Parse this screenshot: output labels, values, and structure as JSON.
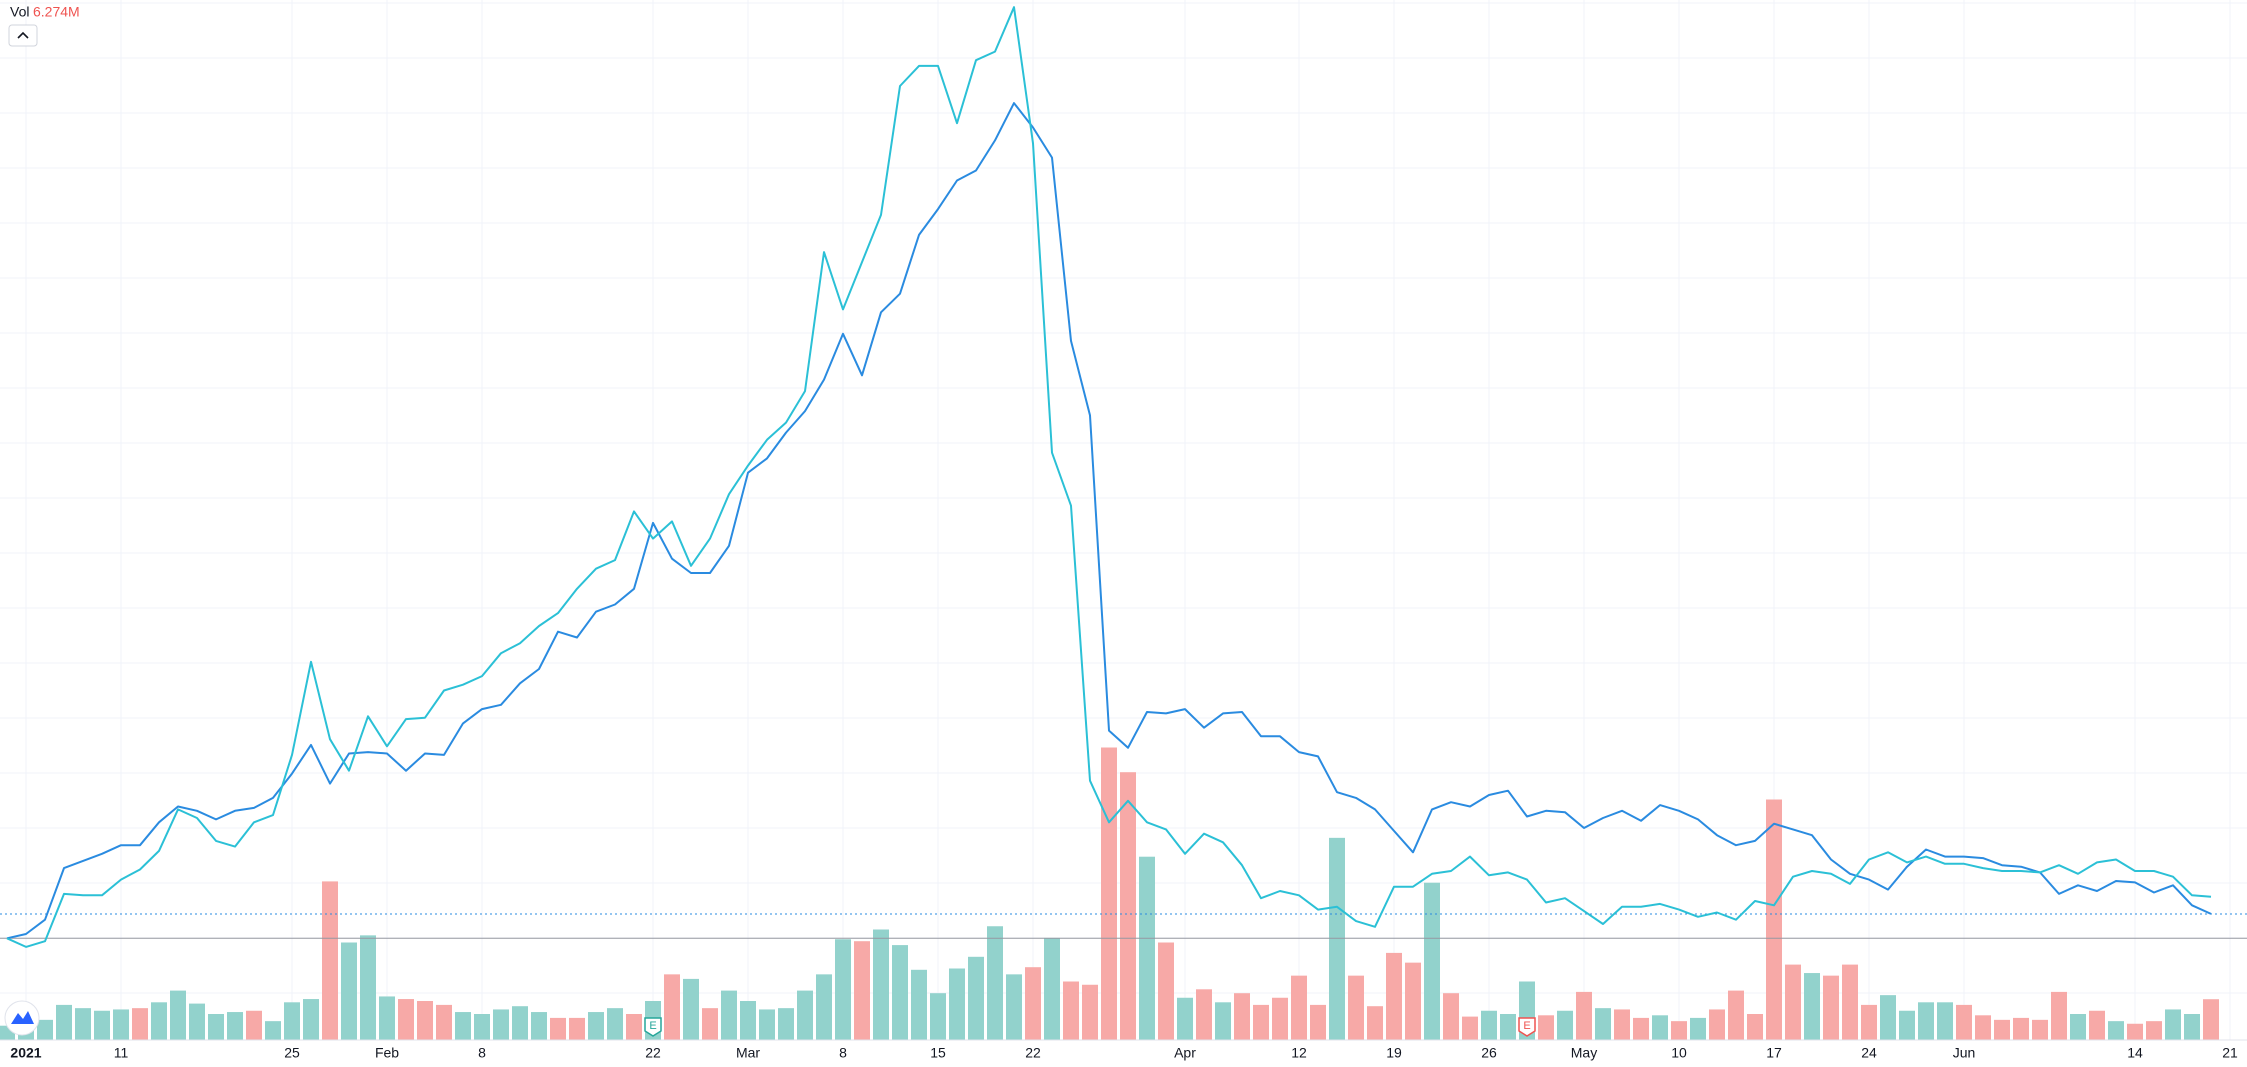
{
  "chart_data": {
    "type": "line",
    "categories": [
      null,
      "2021",
      null,
      null,
      null,
      null,
      "11",
      null,
      null,
      null,
      null,
      null,
      null,
      null,
      null,
      "25",
      null,
      null,
      null,
      null,
      "Feb",
      null,
      null,
      null,
      null,
      "8",
      null,
      null,
      null,
      null,
      null,
      null,
      null,
      null,
      "22",
      null,
      null,
      null,
      null,
      "Mar",
      null,
      null,
      null,
      null,
      "8",
      null,
      null,
      null,
      null,
      "15",
      null,
      null,
      null,
      null,
      "22",
      null,
      null,
      null,
      null,
      null,
      null,
      null,
      "Apr",
      null,
      null,
      null,
      null,
      null,
      "12",
      null,
      null,
      null,
      null,
      "19",
      null,
      null,
      null,
      null,
      "26",
      null,
      null,
      null,
      null,
      "May",
      null,
      null,
      null,
      null,
      "10",
      null,
      null,
      null,
      null,
      "17",
      null,
      null,
      null,
      null,
      "24",
      null,
      null,
      null,
      null,
      "Jun",
      null,
      null,
      null,
      null,
      null,
      null,
      null,
      null,
      "14",
      null,
      null,
      null,
      null,
      "21"
    ],
    "series": [
      {
        "color": "#2a8be0",
        "values": [
          0,
          3,
          13,
          49,
          54,
          59,
          65,
          65,
          81,
          92,
          89,
          83,
          89,
          91,
          98,
          115,
          135,
          108,
          129,
          130,
          129,
          117,
          129,
          128,
          150,
          160,
          163,
          178,
          188,
          214,
          210,
          228,
          233,
          244,
          290,
          265,
          255,
          255,
          274,
          325,
          335,
          353,
          368,
          390,
          422,
          393,
          437,
          450,
          491,
          509,
          529,
          536,
          557,
          583,
          566,
          545,
          417,
          365,
          145,
          133,
          158,
          157,
          160,
          147,
          157,
          158,
          141,
          141,
          130,
          127,
          102,
          98,
          90,
          75,
          60,
          90,
          95,
          92,
          100,
          103,
          85,
          89,
          88,
          77,
          84,
          89,
          82,
          93,
          89,
          83,
          72,
          65,
          68,
          80,
          76,
          72,
          55,
          45,
          41,
          34,
          50,
          62,
          57,
          57,
          56,
          51,
          50,
          46,
          31,
          37,
          33,
          40,
          39,
          32,
          37,
          23,
          17,
          null
        ]
      },
      {
        "color": "#2bc0d6",
        "values": [
          0,
          -6,
          -2,
          31,
          30,
          30,
          41,
          48,
          61,
          90,
          84,
          68,
          64,
          81,
          86,
          128,
          193,
          139,
          117,
          155,
          134,
          153,
          154,
          173,
          177,
          183,
          199,
          206,
          218,
          227,
          244,
          258,
          264,
          298,
          279,
          291,
          260,
          279,
          310,
          330,
          348,
          360,
          382,
          479,
          439,
          472,
          505,
          595,
          609,
          609,
          569,
          613,
          619,
          650,
          555,
          339,
          302,
          110,
          81,
          96,
          81,
          76,
          59,
          73,
          67,
          51,
          28,
          33,
          30,
          20,
          22,
          12,
          8,
          36,
          36,
          45,
          47,
          57,
          44,
          46,
          41,
          25,
          28,
          19,
          10,
          22,
          22,
          24,
          20,
          15,
          18,
          13,
          26,
          23,
          43,
          47,
          45,
          38,
          55,
          60,
          53,
          57,
          52,
          52,
          49,
          47,
          47,
          46,
          51,
          45,
          53,
          55,
          47,
          47,
          43,
          30,
          29,
          null
        ]
      }
    ],
    "ylim": [
      -71,
      655
    ],
    "reference_line": 0,
    "grid": true,
    "volume": {
      "type": "bar",
      "name": "Vol",
      "last_value_label": "6.274M",
      "label_color": "#ef5350",
      "ylim": [
        0,
        160
      ],
      "values": [
        2.2,
        2.2,
        3.1,
        5.4,
        4.9,
        4.5,
        4.7,
        4.9,
        5.8,
        7.6,
        5.6,
        4.0,
        4.3,
        4.5,
        2.9,
        5.8,
        6.3,
        24.4,
        15.0,
        16.1,
        6.7,
        6.3,
        6.0,
        5.4,
        4.3,
        4.0,
        4.7,
        5.2,
        4.3,
        3.4,
        3.4,
        4.3,
        4.9,
        4.0,
        6.0,
        10.1,
        9.4,
        4.9,
        7.6,
        6.0,
        4.7,
        4.9,
        7.6,
        10.1,
        15.5,
        15.2,
        17.0,
        14.6,
        10.8,
        7.2,
        11.0,
        12.8,
        17.5,
        10.1,
        11.2,
        15.7,
        9.0,
        8.5,
        45.0,
        41.2,
        28.2,
        15.0,
        6.5,
        7.8,
        5.8,
        7.2,
        5.4,
        6.5,
        9.9,
        5.4,
        31.1,
        9.9,
        5.2,
        13.4,
        11.9,
        24.2,
        7.2,
        3.6,
        4.5,
        4.0,
        9.0,
        3.8,
        4.5,
        7.4,
        4.9,
        4.7,
        3.4,
        3.8,
        2.9,
        3.4,
        4.7,
        7.6,
        4.0,
        37.0,
        11.6,
        10.3,
        9.9,
        11.6,
        5.4,
        6.9,
        4.5,
        5.8,
        5.8,
        5.4,
        3.8,
        3.1,
        3.4,
        3.1,
        7.4,
        4.0,
        4.5,
        2.9,
        2.5,
        2.9,
        4.7,
        4.0,
        6.274,
        null
      ],
      "colors": [
        "#92d2cc",
        "#92d2cc",
        "#92d2cc",
        "#92d2cc",
        "#92d2cc",
        "#92d2cc",
        "#92d2cc",
        "#f7a9a7",
        "#92d2cc",
        "#92d2cc",
        "#92d2cc",
        "#92d2cc",
        "#92d2cc",
        "#f7a9a7",
        "#92d2cc",
        "#92d2cc",
        "#92d2cc",
        "#f7a9a7",
        "#92d2cc",
        "#92d2cc",
        "#92d2cc",
        "#f7a9a7",
        "#f7a9a7",
        "#f7a9a7",
        "#92d2cc",
        "#92d2cc",
        "#92d2cc",
        "#92d2cc",
        "#92d2cc",
        "#f7a9a7",
        "#f7a9a7",
        "#92d2cc",
        "#92d2cc",
        "#f7a9a7",
        "#92d2cc",
        "#f7a9a7",
        "#92d2cc",
        "#f7a9a7",
        "#92d2cc",
        "#92d2cc",
        "#92d2cc",
        "#92d2cc",
        "#92d2cc",
        "#92d2cc",
        "#92d2cc",
        "#f7a9a7",
        "#92d2cc",
        "#92d2cc",
        "#92d2cc",
        "#92d2cc",
        "#92d2cc",
        "#92d2cc",
        "#92d2cc",
        "#92d2cc",
        "#f7a9a7",
        "#92d2cc",
        "#f7a9a7",
        "#f7a9a7",
        "#f7a9a7",
        "#f7a9a7",
        "#92d2cc",
        "#f7a9a7",
        "#92d2cc",
        "#f7a9a7",
        "#92d2cc",
        "#f7a9a7",
        "#f7a9a7",
        "#f7a9a7",
        "#f7a9a7",
        "#f7a9a7",
        "#92d2cc",
        "#f7a9a7",
        "#f7a9a7",
        "#f7a9a7",
        "#f7a9a7",
        "#92d2cc",
        "#f7a9a7",
        "#f7a9a7",
        "#92d2cc",
        "#92d2cc",
        "#92d2cc",
        "#f7a9a7",
        "#92d2cc",
        "#f7a9a7",
        "#92d2cc",
        "#f7a9a7",
        "#f7a9a7",
        "#92d2cc",
        "#f7a9a7",
        "#92d2cc",
        "#f7a9a7",
        "#f7a9a7",
        "#f7a9a7",
        "#f7a9a7",
        "#f7a9a7",
        "#92d2cc",
        "#f7a9a7",
        "#f7a9a7",
        "#f7a9a7",
        "#92d2cc",
        "#92d2cc",
        "#92d2cc",
        "#92d2cc",
        "#f7a9a7",
        "#f7a9a7",
        "#f7a9a7",
        "#f7a9a7",
        "#f7a9a7",
        "#f7a9a7",
        "#92d2cc",
        "#f7a9a7",
        "#92d2cc",
        "#f7a9a7",
        "#f7a9a7",
        "#92d2cc",
        "#92d2cc",
        "#f7a9a7",
        null
      ]
    },
    "events": [
      {
        "category": 34,
        "label": "E",
        "color": "#26a69a"
      },
      {
        "category": 80,
        "label": "E",
        "color": "#ef5350"
      }
    ]
  }
}
